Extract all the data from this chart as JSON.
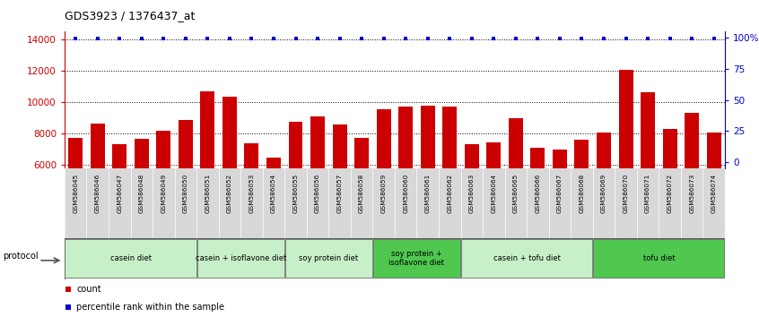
{
  "title": "GDS3923 / 1376437_at",
  "categories": [
    "GSM586045",
    "GSM586046",
    "GSM586047",
    "GSM586048",
    "GSM586049",
    "GSM586050",
    "GSM586051",
    "GSM586052",
    "GSM586053",
    "GSM586054",
    "GSM586055",
    "GSM586056",
    "GSM586057",
    "GSM586058",
    "GSM586059",
    "GSM586060",
    "GSM586061",
    "GSM586062",
    "GSM586063",
    "GSM586064",
    "GSM586065",
    "GSM586066",
    "GSM586067",
    "GSM586068",
    "GSM586069",
    "GSM586070",
    "GSM586071",
    "GSM586072",
    "GSM586073",
    "GSM586074"
  ],
  "counts": [
    7700,
    8650,
    7300,
    7650,
    8200,
    8850,
    10700,
    10350,
    7400,
    6450,
    8750,
    9100,
    8600,
    7700,
    9550,
    9700,
    9800,
    9700,
    7350,
    7450,
    9000,
    7100,
    6950,
    7600,
    8050,
    12050,
    10650,
    8300,
    9300,
    8050
  ],
  "bar_color": "#cc0000",
  "dot_color": "#0000cc",
  "ylim_left": [
    5800,
    14500
  ],
  "ylim_right": [
    -5,
    105
  ],
  "yticks_left": [
    6000,
    8000,
    10000,
    12000,
    14000
  ],
  "ytick_labels_left": [
    "6000",
    "8000",
    "10000",
    "12000",
    "14000"
  ],
  "yticks_right": [
    0,
    25,
    50,
    75,
    100
  ],
  "ytick_labels_right": [
    "0",
    "25",
    "50",
    "75",
    "100%"
  ],
  "groups": [
    {
      "label": "casein diet",
      "start": 0,
      "end": 5,
      "color": "#c8f0c8"
    },
    {
      "label": "casein + isoflavone diet",
      "start": 6,
      "end": 9,
      "color": "#c8f0c8"
    },
    {
      "label": "soy protein diet",
      "start": 10,
      "end": 13,
      "color": "#c8f0c8"
    },
    {
      "label": "soy protein +\nisoflavone diet",
      "start": 14,
      "end": 17,
      "color": "#50c850"
    },
    {
      "label": "casein + tofu diet",
      "start": 18,
      "end": 23,
      "color": "#c8f0c8"
    },
    {
      "label": "tofu diet",
      "start": 24,
      "end": 29,
      "color": "#50c850"
    }
  ],
  "legend_count_label": "count",
  "legend_pct_label": "percentile rank within the sample",
  "protocol_label": "protocol"
}
